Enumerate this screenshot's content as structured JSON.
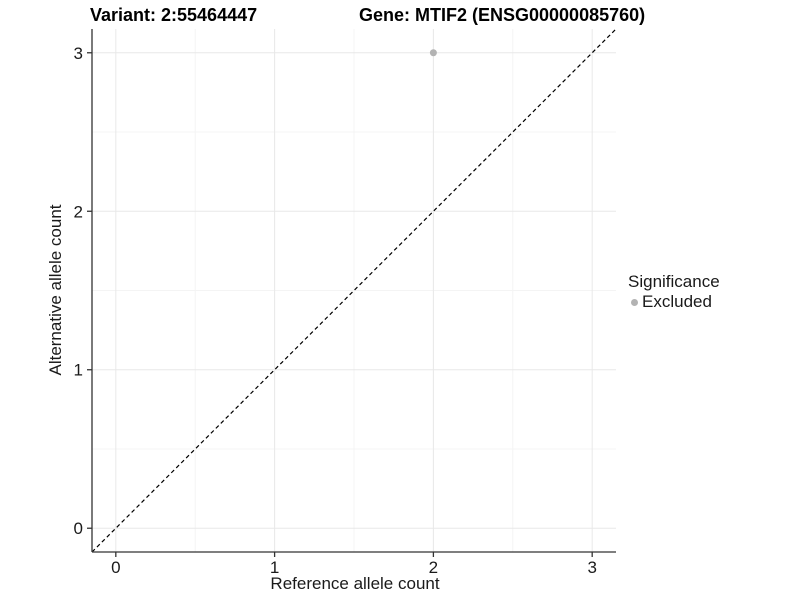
{
  "chart_data": {
    "type": "scatter",
    "title_left": "Variant: 2:55464447",
    "title_right": "Gene: MTIF2 (ENSG00000085760)",
    "xlabel": "Reference allele count",
    "ylabel": "Alternative allele count",
    "xlim": [
      -0.15,
      3.15
    ],
    "ylim": [
      -0.15,
      3.15
    ],
    "xticks": [
      {
        "value": 0,
        "label": "0"
      },
      {
        "value": 1,
        "label": "1"
      },
      {
        "value": 2,
        "label": "2"
      },
      {
        "value": 3,
        "label": "3"
      }
    ],
    "yticks": [
      {
        "value": 0,
        "label": "0"
      },
      {
        "value": 1,
        "label": "1"
      },
      {
        "value": 2,
        "label": "2"
      },
      {
        "value": 3,
        "label": "3"
      }
    ],
    "x_minor_ticks": [
      0.5,
      1.5,
      2.5
    ],
    "y_minor_ticks": [
      0.5,
      1.5,
      2.5
    ],
    "grid": true,
    "legend_position": "right",
    "reference_line": {
      "kind": "identity-diagonal",
      "style": "dashed",
      "color": "#000000"
    },
    "series": [
      {
        "name": "Excluded",
        "color": "#b3b3b3",
        "point_radius": 3.5,
        "points": [
          {
            "x": 2,
            "y": 3
          }
        ]
      }
    ],
    "legend": {
      "title": "Significance",
      "entries": [
        {
          "label": "Excluded",
          "color": "#b3b3b3"
        }
      ]
    },
    "colors": {
      "background": "#ffffff",
      "axis_line": "#333333",
      "tick_mark": "#333333",
      "tick_label": "#1a1a1a",
      "major_grid": "#e8e8e8",
      "minor_grid": "#f4f4f4",
      "identity_line": "#000000",
      "excluded_point": "#b3b3b3"
    }
  }
}
